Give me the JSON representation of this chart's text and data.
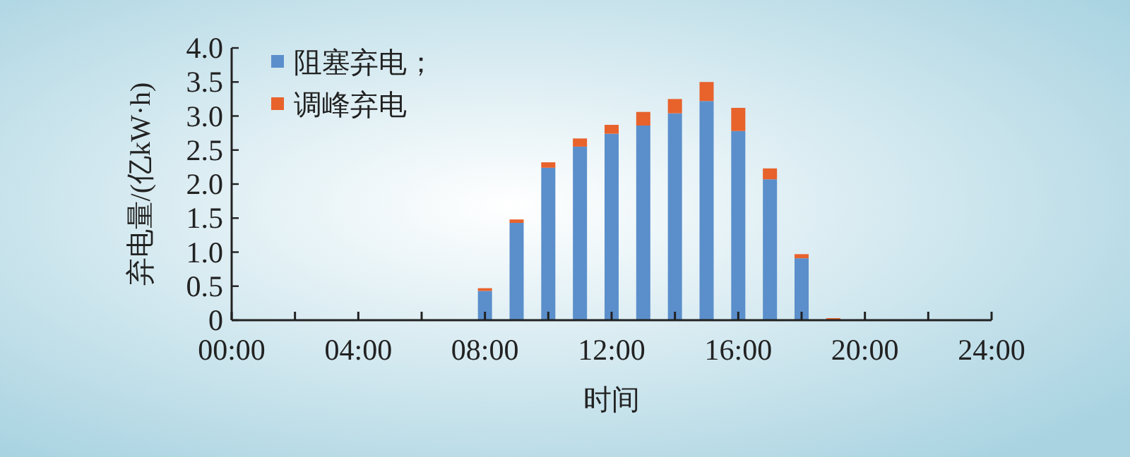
{
  "chart_data": {
    "type": "bar",
    "stacked": true,
    "xlabel": "时间",
    "ylabel": "弃电量/(亿kW·h)",
    "x": [
      8,
      9,
      10,
      11,
      12,
      13,
      14,
      15,
      16,
      17,
      18,
      19
    ],
    "series": [
      {
        "name": "阻塞弃电；",
        "color": "#5b8fcb",
        "values": [
          0.43,
          1.43,
          2.24,
          2.55,
          2.74,
          2.86,
          3.04,
          3.22,
          2.78,
          2.07,
          0.91,
          null
        ]
      },
      {
        "name": "调峰弃电",
        "color": "#e8622c",
        "values": [
          0.04,
          0.05,
          0.08,
          0.12,
          0.13,
          0.2,
          0.21,
          0.28,
          0.34,
          0.16,
          0.06,
          0.03
        ]
      }
    ],
    "xlim": [
      0,
      24
    ],
    "xticks": [
      {
        "value": 0,
        "label": "00:00"
      },
      {
        "value": 2,
        "label": null
      },
      {
        "value": 4,
        "label": "04:00"
      },
      {
        "value": 6,
        "label": null
      },
      {
        "value": 8,
        "label": "08:00"
      },
      {
        "value": 10,
        "label": null
      },
      {
        "value": 12,
        "label": "12:00"
      },
      {
        "value": 14,
        "label": null
      },
      {
        "value": 16,
        "label": "16:00"
      },
      {
        "value": 18,
        "label": null
      },
      {
        "value": 20,
        "label": "20:00"
      },
      {
        "value": 22,
        "label": null
      },
      {
        "value": 24,
        "label": "24:00"
      }
    ],
    "ylim": [
      0,
      4
    ],
    "yticks": [
      0,
      0.5,
      {
        "value": 1,
        "label": "1.0"
      },
      1.5,
      {
        "value": 2,
        "label": "2.0"
      },
      2.5,
      {
        "value": 3,
        "label": "3.0"
      },
      3.5,
      {
        "value": 4,
        "label": "4.0"
      }
    ],
    "grid": false,
    "legend": "top left"
  }
}
